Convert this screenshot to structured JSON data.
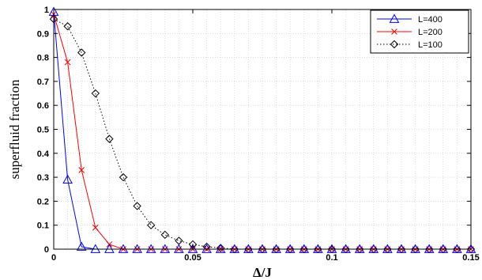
{
  "chart_data": {
    "type": "line",
    "title": "",
    "xlabel": "Δ/J",
    "ylabel": "superfluid fraction",
    "xlim": [
      0,
      0.15
    ],
    "ylim": [
      0,
      1
    ],
    "xticks": [
      0,
      0.05,
      0.1,
      0.15
    ],
    "xtick_labels": [
      "0",
      "0.05",
      "0.1",
      "0.15"
    ],
    "yticks": [
      0,
      0.1,
      0.2,
      0.3,
      0.4,
      0.5,
      0.6,
      0.7,
      0.8,
      0.9,
      1
    ],
    "ytick_labels": [
      "0",
      "0.1",
      "0.2",
      "0.3",
      "0.4",
      "0.5",
      "0.6",
      "0.7",
      "0.8",
      "0.9",
      "1"
    ],
    "grid": true,
    "legend_position": "top-right",
    "x": [
      0,
      0.005,
      0.01,
      0.015,
      0.02,
      0.025,
      0.03,
      0.035,
      0.04,
      0.045,
      0.05,
      0.055,
      0.06,
      0.065,
      0.07,
      0.075,
      0.08,
      0.085,
      0.09,
      0.095,
      0.1,
      0.105,
      0.11,
      0.115,
      0.12,
      0.125,
      0.13,
      0.135,
      0.14,
      0.145,
      0.15
    ],
    "series": [
      {
        "name": "L=400",
        "color": "#0000ff",
        "marker": "triangle",
        "line_style": "solid",
        "values": [
          0.99,
          0.29,
          0.01,
          0,
          0,
          0,
          0,
          0,
          0,
          0,
          0,
          0,
          0,
          0,
          0,
          0,
          0,
          0,
          0,
          0,
          0,
          0,
          0,
          0,
          0,
          0,
          0,
          0,
          0,
          0,
          0
        ]
      },
      {
        "name": "L=200",
        "color": "#ff0000",
        "marker": "x",
        "line_style": "solid",
        "values": [
          0.98,
          0.78,
          0.33,
          0.09,
          0.02,
          0,
          0,
          0,
          0,
          0,
          0,
          0,
          0,
          0,
          0,
          0,
          0,
          0,
          0,
          0,
          0,
          0,
          0,
          0,
          0,
          0,
          0,
          0,
          0,
          0,
          0
        ]
      },
      {
        "name": "L=100",
        "color": "#000000",
        "marker": "diamond",
        "line_style": "dotted",
        "values": [
          0.96,
          0.93,
          0.82,
          0.65,
          0.46,
          0.3,
          0.18,
          0.1,
          0.06,
          0.035,
          0.02,
          0.01,
          0.005,
          0,
          0,
          0,
          0,
          0,
          0,
          0,
          0,
          0,
          0,
          0,
          0,
          0,
          0,
          0,
          0,
          0,
          0
        ]
      }
    ]
  }
}
